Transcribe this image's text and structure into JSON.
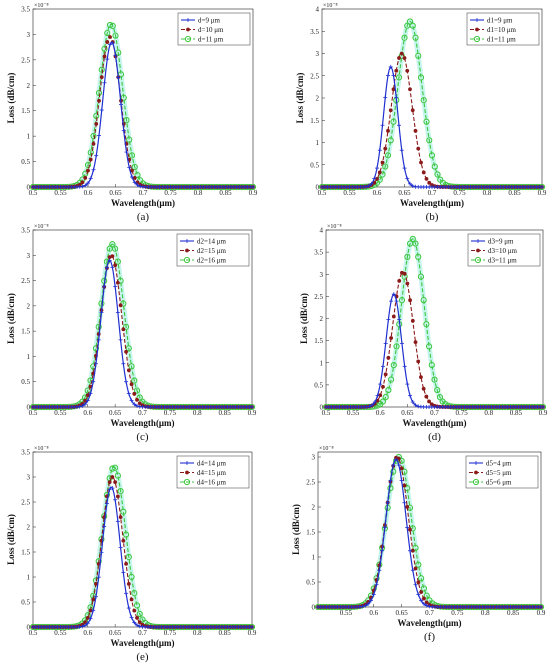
{
  "figure": {
    "panels": [
      {
        "caption": "(a)",
        "x_label": "Wavelength(μm)",
        "y_label": "Loss (dB/cm)",
        "exponent": "×10⁻⁸"
      },
      {
        "caption": "(b)",
        "x_label": "Wavelength(μm)",
        "y_label": "Loss (dB/cm)",
        "exponent": "×10⁻⁸"
      },
      {
        "caption": "(c)",
        "x_label": "Wavelength(μm)",
        "y_label": "Loss (dB/cm)",
        "exponent": "×10⁻⁸"
      },
      {
        "caption": "(d)",
        "x_label": "Wavelength(μm)",
        "y_label": "Loss (dB/cm)",
        "exponent": "×10⁻⁸"
      },
      {
        "caption": "(e)",
        "x_label": "Wavelength(μm)",
        "y_label": "Loss (dB/cm)",
        "exponent": "×10⁻⁸"
      },
      {
        "caption": "(f)",
        "x_label": "Wavelength(μm)",
        "y_label": "Loss (dB/cm)",
        "exponent": "×10⁻⁸"
      }
    ]
  },
  "colors": {
    "series1": "#1f2fd0",
    "series2": "#8b1a1a",
    "series3": "#3fc63f",
    "glow3": "#b8f3e8"
  },
  "chart_data": [
    {
      "type": "line",
      "panel": "a",
      "xlabel": "Wavelength(μm)",
      "ylabel": "Loss (dB/cm)",
      "y_scale_label": "×10⁻⁸",
      "xlim": [
        0.5,
        0.9
      ],
      "ylim": [
        0,
        3.5
      ],
      "xticks": [
        0.5,
        0.55,
        0.6,
        0.65,
        0.7,
        0.75,
        0.8,
        0.85,
        0.9
      ],
      "yticks": [
        0,
        0.5,
        1,
        1.5,
        2,
        2.5,
        3,
        3.5
      ],
      "legend_position": "top-right",
      "series": [
        {
          "name": "d=9 μm",
          "peak_x": 0.643,
          "peak_y": 2.85,
          "width": 0.016
        },
        {
          "name": "d=10 μm",
          "peak_x": 0.64,
          "peak_y": 2.95,
          "width": 0.019
        },
        {
          "name": "d=11 μm",
          "peak_x": 0.642,
          "peak_y": 3.2,
          "width": 0.021
        }
      ]
    },
    {
      "type": "line",
      "panel": "b",
      "xlabel": "Wavelength(μm)",
      "ylabel": "Loss (dB/cm)",
      "y_scale_label": "×10⁻⁸",
      "xlim": [
        0.5,
        0.9
      ],
      "ylim": [
        0,
        4
      ],
      "xticks": [
        0.5,
        0.55,
        0.6,
        0.65,
        0.7,
        0.75,
        0.8,
        0.85,
        0.9
      ],
      "yticks": [
        0,
        0.5,
        1,
        1.5,
        2,
        2.5,
        3,
        3.5,
        4
      ],
      "legend_position": "top-right",
      "series": [
        {
          "name": "d1=9 μm",
          "peak_x": 0.625,
          "peak_y": 2.7,
          "width": 0.013
        },
        {
          "name": "d1=10 μm",
          "peak_x": 0.645,
          "peak_y": 3.0,
          "width": 0.019
        },
        {
          "name": "d1=11 μm",
          "peak_x": 0.66,
          "peak_y": 3.72,
          "width": 0.022
        }
      ]
    },
    {
      "type": "line",
      "panel": "c",
      "xlabel": "Wavelength(μm)",
      "ylabel": "Loss (dB/cm)",
      "y_scale_label": "×10⁻⁸",
      "xlim": [
        0.5,
        0.9
      ],
      "ylim": [
        0,
        3.5
      ],
      "xticks": [
        0.5,
        0.55,
        0.6,
        0.65,
        0.7,
        0.75,
        0.8,
        0.85,
        0.9
      ],
      "yticks": [
        0,
        0.5,
        1,
        1.5,
        2,
        2.5,
        3,
        3.5
      ],
      "legend_position": "top-right",
      "series": [
        {
          "name": "d2=14 μm",
          "peak_x": 0.64,
          "peak_y": 2.9,
          "width": 0.016
        },
        {
          "name": "d2=15 μm",
          "peak_x": 0.643,
          "peak_y": 3.0,
          "width": 0.019
        },
        {
          "name": "d2=16 μm",
          "peak_x": 0.645,
          "peak_y": 3.22,
          "width": 0.021
        }
      ]
    },
    {
      "type": "line",
      "panel": "d",
      "xlabel": "Wavelength(μm)",
      "ylabel": "Loss (dB/cm)",
      "y_scale_label": "×10⁻⁸",
      "xlim": [
        0.5,
        0.9
      ],
      "ylim": [
        0,
        4
      ],
      "xticks": [
        0.5,
        0.55,
        0.6,
        0.65,
        0.7,
        0.75,
        0.8,
        0.85,
        0.9
      ],
      "yticks": [
        0,
        0.5,
        1,
        1.5,
        2,
        2.5,
        3,
        3.5,
        4
      ],
      "legend_position": "top-right",
      "series": [
        {
          "name": "d3=9 μm",
          "peak_x": 0.625,
          "peak_y": 2.55,
          "width": 0.014
        },
        {
          "name": "d3=10 μm",
          "peak_x": 0.642,
          "peak_y": 3.05,
          "width": 0.019
        },
        {
          "name": "d3=11 μm",
          "peak_x": 0.66,
          "peak_y": 3.8,
          "width": 0.021
        }
      ]
    },
    {
      "type": "line",
      "panel": "e",
      "xlabel": "Wavelength(μm)",
      "ylabel": "Loss (dB/cm)",
      "y_scale_label": "×10⁻⁸",
      "xlim": [
        0.5,
        0.9
      ],
      "ylim": [
        0,
        3.5
      ],
      "xticks": [
        0.5,
        0.55,
        0.6,
        0.65,
        0.7,
        0.75,
        0.8,
        0.85,
        0.9
      ],
      "yticks": [
        0,
        0.5,
        1,
        1.5,
        2,
        2.5,
        3,
        3.5
      ],
      "legend_position": "top-right",
      "series": [
        {
          "name": "d4=14 μm",
          "peak_x": 0.643,
          "peak_y": 2.8,
          "width": 0.016
        },
        {
          "name": "d4=15 μm",
          "peak_x": 0.645,
          "peak_y": 3.0,
          "width": 0.019
        },
        {
          "name": "d4=16 μm",
          "peak_x": 0.648,
          "peak_y": 3.2,
          "width": 0.021
        }
      ]
    },
    {
      "type": "line",
      "panel": "f",
      "xlabel": "Wavelength(μm)",
      "ylabel": "Loss (dB/cm)",
      "y_scale_label": "×10⁻⁸",
      "xlim": [
        0.5,
        0.9
      ],
      "ylim": [
        0,
        3.1
      ],
      "xticks": [
        0.55,
        0.6,
        0.65,
        0.7,
        0.75,
        0.8,
        0.85,
        0.9
      ],
      "yticks": [
        0,
        0.5,
        1,
        1.5,
        2,
        2.5,
        3
      ],
      "legend_position": "top-right",
      "series": [
        {
          "name": "d5=4 μm",
          "peak_x": 0.64,
          "peak_y": 2.95,
          "width": 0.018
        },
        {
          "name": "d5=5 μm",
          "peak_x": 0.642,
          "peak_y": 3.0,
          "width": 0.02
        },
        {
          "name": "d5=6 μm",
          "peak_x": 0.645,
          "peak_y": 3.0,
          "width": 0.022
        }
      ]
    }
  ]
}
